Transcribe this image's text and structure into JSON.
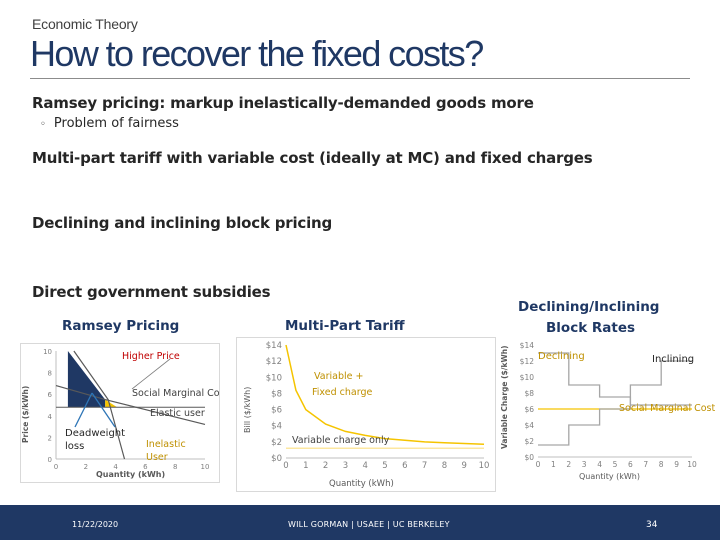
{
  "header": {
    "subtitle": "Economic Theory",
    "title": "How to recover the fixed costs?"
  },
  "bullets": [
    {
      "text": "Ramsey pricing: markup inelastically-demanded goods more",
      "sub": "Problem of fairness"
    },
    {
      "text": "Multi-part tariff with variable cost (ideally at MC) and fixed charges"
    },
    {
      "text": "Declining and inclining block pricing"
    },
    {
      "text": "Direct government subsidies"
    }
  ],
  "figure_labels": {
    "ramsey": "Ramsey Pricing",
    "multipart": "Multi-Part Tariff",
    "block_line1": "Declining/Inclining",
    "block_line2": "Block Rates"
  },
  "chart_data": [
    {
      "type": "line",
      "name": "ramsey",
      "ylabel": "Price ($/kWh)",
      "xlabel": "Quantity (kWh)",
      "x_ticks": [
        0,
        2,
        4,
        6,
        8,
        10
      ],
      "y_ticks": [
        0,
        2,
        4,
        6,
        8,
        10
      ],
      "xlim": [
        0,
        10
      ],
      "ylim": [
        0,
        10
      ],
      "series": [
        {
          "name": "Elastic user",
          "points": [
            [
              0,
              6.8
            ],
            [
              3.3,
              5.5
            ],
            [
              10,
              3.2
            ]
          ]
        },
        {
          "name": "Inelastic User",
          "points": [
            [
              1.2,
              10
            ],
            [
              3.5,
              5.5
            ],
            [
              4.6,
              0
            ]
          ]
        },
        {
          "name": "Social Marginal Cost",
          "points": [
            [
              0,
              4.8
            ],
            [
              10,
              4.8
            ]
          ]
        }
      ],
      "annotations": {
        "higher_price": "Higher Price",
        "smc": "Social Marginal Cost",
        "elastic": "Elastic user",
        "deadweight_1": "Deadweight",
        "deadweight_2": "loss",
        "inelastic_1": "Inelastic",
        "inelastic_2": "User"
      },
      "colors": {
        "loss": "#1f3864",
        "gain": "#f5c400",
        "line": "#595959"
      }
    },
    {
      "type": "line",
      "name": "multipart",
      "ylabel": "Bill ($/kWh)",
      "xlabel": "Quantity (kWh)",
      "x_ticks": [
        0,
        1,
        2,
        3,
        4,
        5,
        6,
        7,
        8,
        9,
        10
      ],
      "y_ticks": [
        "$0",
        "$2",
        "$4",
        "$6",
        "$8",
        "$10",
        "$12",
        "$14"
      ],
      "xlim": [
        0,
        10
      ],
      "ylim": [
        0,
        14
      ],
      "series": [
        {
          "name": "Variable + Fixed charge",
          "points": [
            [
              0,
              14
            ],
            [
              0.5,
              8.4
            ],
            [
              1,
              6
            ],
            [
              2,
              4.2
            ],
            [
              3,
              3.3
            ],
            [
              4,
              2.8
            ],
            [
              5,
              2.4
            ],
            [
              6,
              2.2
            ],
            [
              7,
              2.0
            ],
            [
              8,
              1.9
            ],
            [
              9,
              1.8
            ],
            [
              10,
              1.7
            ]
          ]
        },
        {
          "name": "Variable charge only",
          "points": [
            [
              0,
              1.2
            ],
            [
              10,
              1.2
            ]
          ]
        }
      ],
      "annotations": {
        "fixed_1": "Variable +",
        "fixed_2": "Fixed charge",
        "variable": "Variable charge only"
      },
      "colors": {
        "fixed": "#f5c400",
        "variable": "#fce7a0"
      }
    },
    {
      "type": "line",
      "name": "block",
      "ylabel": "Variable Charge ($/kWh)",
      "xlabel": "Quantity (kWh)",
      "x_ticks": [
        0,
        1,
        2,
        3,
        4,
        5,
        6,
        7,
        8,
        9,
        10
      ],
      "y_ticks": [
        "$0",
        "$2",
        "$4",
        "$6",
        "$8",
        "$10",
        "$12",
        "$14"
      ],
      "xlim": [
        0,
        10
      ],
      "ylim": [
        0,
        14
      ],
      "series": [
        {
          "name": "Declining",
          "points": [
            [
              0,
              13
            ],
            [
              2,
              13
            ],
            [
              2,
              9
            ],
            [
              4,
              9
            ],
            [
              4,
              7.5
            ],
            [
              6,
              7.5
            ],
            [
              6,
              6.5
            ],
            [
              10,
              6.5
            ]
          ]
        },
        {
          "name": "Inclining",
          "points": [
            [
              0,
              1.5
            ],
            [
              2,
              1.5
            ],
            [
              2,
              4
            ],
            [
              4,
              4
            ],
            [
              4,
              6
            ],
            [
              6,
              6
            ],
            [
              6,
              9
            ],
            [
              8,
              9
            ],
            [
              8,
              12
            ],
            [
              10,
              12
            ]
          ]
        },
        {
          "name": "Social Marginal Cost",
          "points": [
            [
              0,
              6
            ],
            [
              10,
              6
            ]
          ]
        }
      ],
      "annotations": {
        "declining": "Declining",
        "inclining": "Inclining",
        "smc": "Social Marginal Cost"
      },
      "colors": {
        "smc": "#f5c400",
        "line": "#a6a6a6"
      }
    }
  ],
  "footer": {
    "date": "11/22/2020",
    "center": "WILL GORMAN | USAEE | UC BERKELEY",
    "page": "34"
  }
}
